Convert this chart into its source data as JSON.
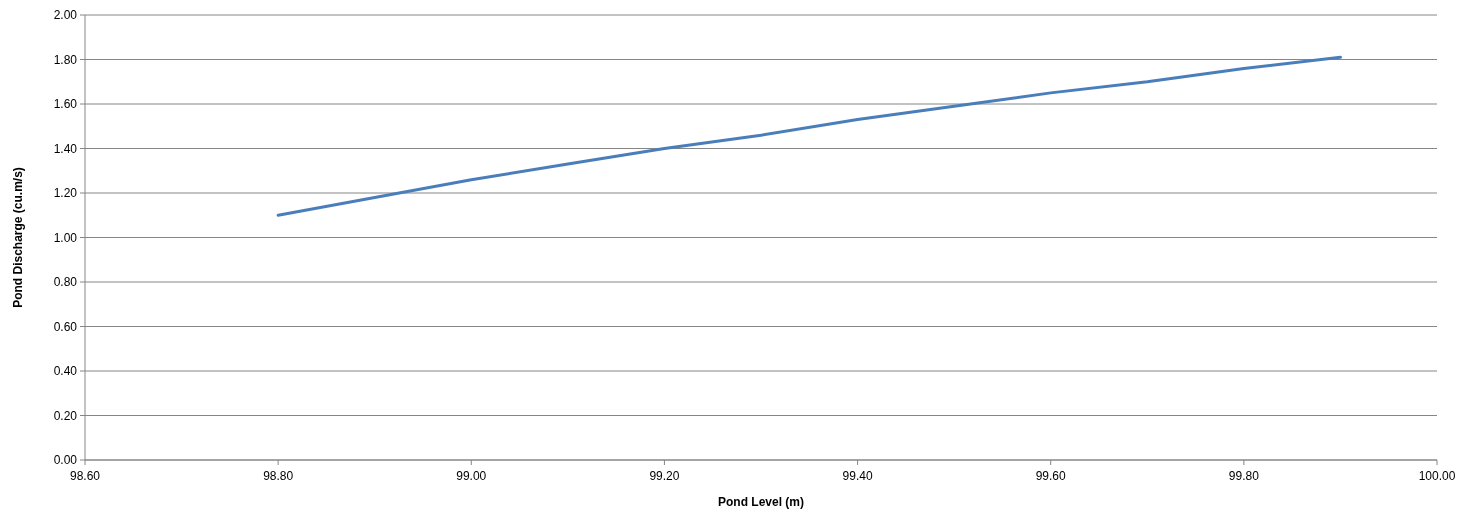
{
  "chart_data": {
    "type": "line",
    "xlabel": "Pond Level (m)",
    "ylabel": "Pond Discharge (cu.m/s)",
    "x": [
      98.8,
      98.9,
      99.0,
      99.1,
      99.2,
      99.3,
      99.4,
      99.5,
      99.6,
      99.7,
      99.8,
      99.9
    ],
    "series": [
      {
        "color": "#4a7ebb",
        "values": [
          1.1,
          1.18,
          1.26,
          1.33,
          1.4,
          1.46,
          1.53,
          1.59,
          1.65,
          1.7,
          1.76,
          1.81
        ]
      }
    ],
    "xlim": [
      98.6,
      100
    ],
    "xticks": [
      {
        "value": 98.6,
        "label": "98.60"
      },
      {
        "value": 98.8,
        "label": "98.80"
      },
      {
        "value": 99,
        "label": "99.00"
      },
      {
        "value": 99.2,
        "label": "99.20"
      },
      {
        "value": 99.4,
        "label": "99.40"
      },
      {
        "value": 99.6,
        "label": "99.60"
      },
      {
        "value": 99.8,
        "label": "99.80"
      },
      {
        "value": 100,
        "label": "100.00"
      }
    ],
    "ylim": [
      0,
      2
    ],
    "yticks": [
      {
        "value": 0,
        "label": "0.00"
      },
      {
        "value": 0.2,
        "label": "0.20"
      },
      {
        "value": 0.4,
        "label": "0.40"
      },
      {
        "value": 0.6,
        "label": "0.60"
      },
      {
        "value": 0.8,
        "label": "0.80"
      },
      {
        "value": 1,
        "label": "1.00"
      },
      {
        "value": 1.2,
        "label": "1.20"
      },
      {
        "value": 1.4,
        "label": "1.40"
      },
      {
        "value": 1.6,
        "label": "1.60"
      },
      {
        "value": 1.8,
        "label": "1.80"
      },
      {
        "value": 2,
        "label": "2.00"
      }
    ],
    "grid": "y",
    "marker": "none",
    "line_style": "solid"
  }
}
